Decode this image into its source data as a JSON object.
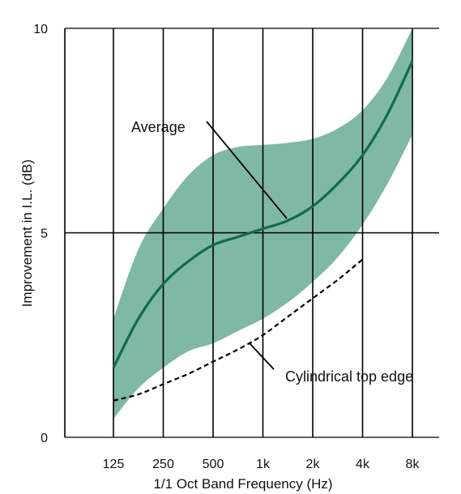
{
  "chart_data": {
    "type": "area",
    "title": "",
    "xlabel": "1/1 Oct Band  Frequency (Hz)",
    "ylabel": "Improvement in I.L. (dB)",
    "x_categories": [
      "125",
      "250",
      "500",
      "1k",
      "2k",
      "4k",
      "8k"
    ],
    "ylim": [
      0,
      10
    ],
    "y_ticks": [
      "0",
      "5",
      "10"
    ],
    "grid": "vertical lines at each band; horizontal line at 5",
    "colors": {
      "band": "#7fb8a5",
      "average": "#116b4e",
      "lines": "#000000"
    },
    "band": {
      "x": [
        0,
        0.5,
        1,
        1.5,
        2,
        2.5,
        3,
        3.5,
        4,
        4.5,
        5,
        5.5,
        6
      ],
      "upper": [
        2.9,
        4.6,
        5.6,
        6.4,
        6.9,
        7.1,
        7.15,
        7.2,
        7.3,
        7.55,
        8.0,
        8.8,
        10.0
      ],
      "lower": [
        0.45,
        1.2,
        1.7,
        2.1,
        2.3,
        2.6,
        2.9,
        3.3,
        3.8,
        4.4,
        5.2,
        6.2,
        7.4
      ]
    },
    "series": [
      {
        "name": "Average",
        "x": [
          0,
          0.5,
          1,
          1.5,
          2,
          2.5,
          3,
          3.5,
          4,
          4.5,
          5,
          5.5,
          6
        ],
        "values": [
          1.7,
          2.9,
          3.75,
          4.3,
          4.7,
          4.9,
          5.1,
          5.3,
          5.65,
          6.2,
          6.9,
          7.9,
          9.2
        ]
      },
      {
        "name": "Cylindrical top edge",
        "x": [
          0,
          0.5,
          1,
          1.5,
          2,
          2.5,
          3,
          3.5,
          4,
          4.5,
          5
        ],
        "values": [
          0.9,
          1.05,
          1.3,
          1.55,
          1.85,
          2.15,
          2.5,
          2.95,
          3.4,
          3.85,
          4.35
        ]
      }
    ],
    "annotations": [
      {
        "text": "Average",
        "points_to": "Average"
      },
      {
        "text": "Cylindrical top edge",
        "points_to": "Cylindrical top edge"
      }
    ]
  }
}
